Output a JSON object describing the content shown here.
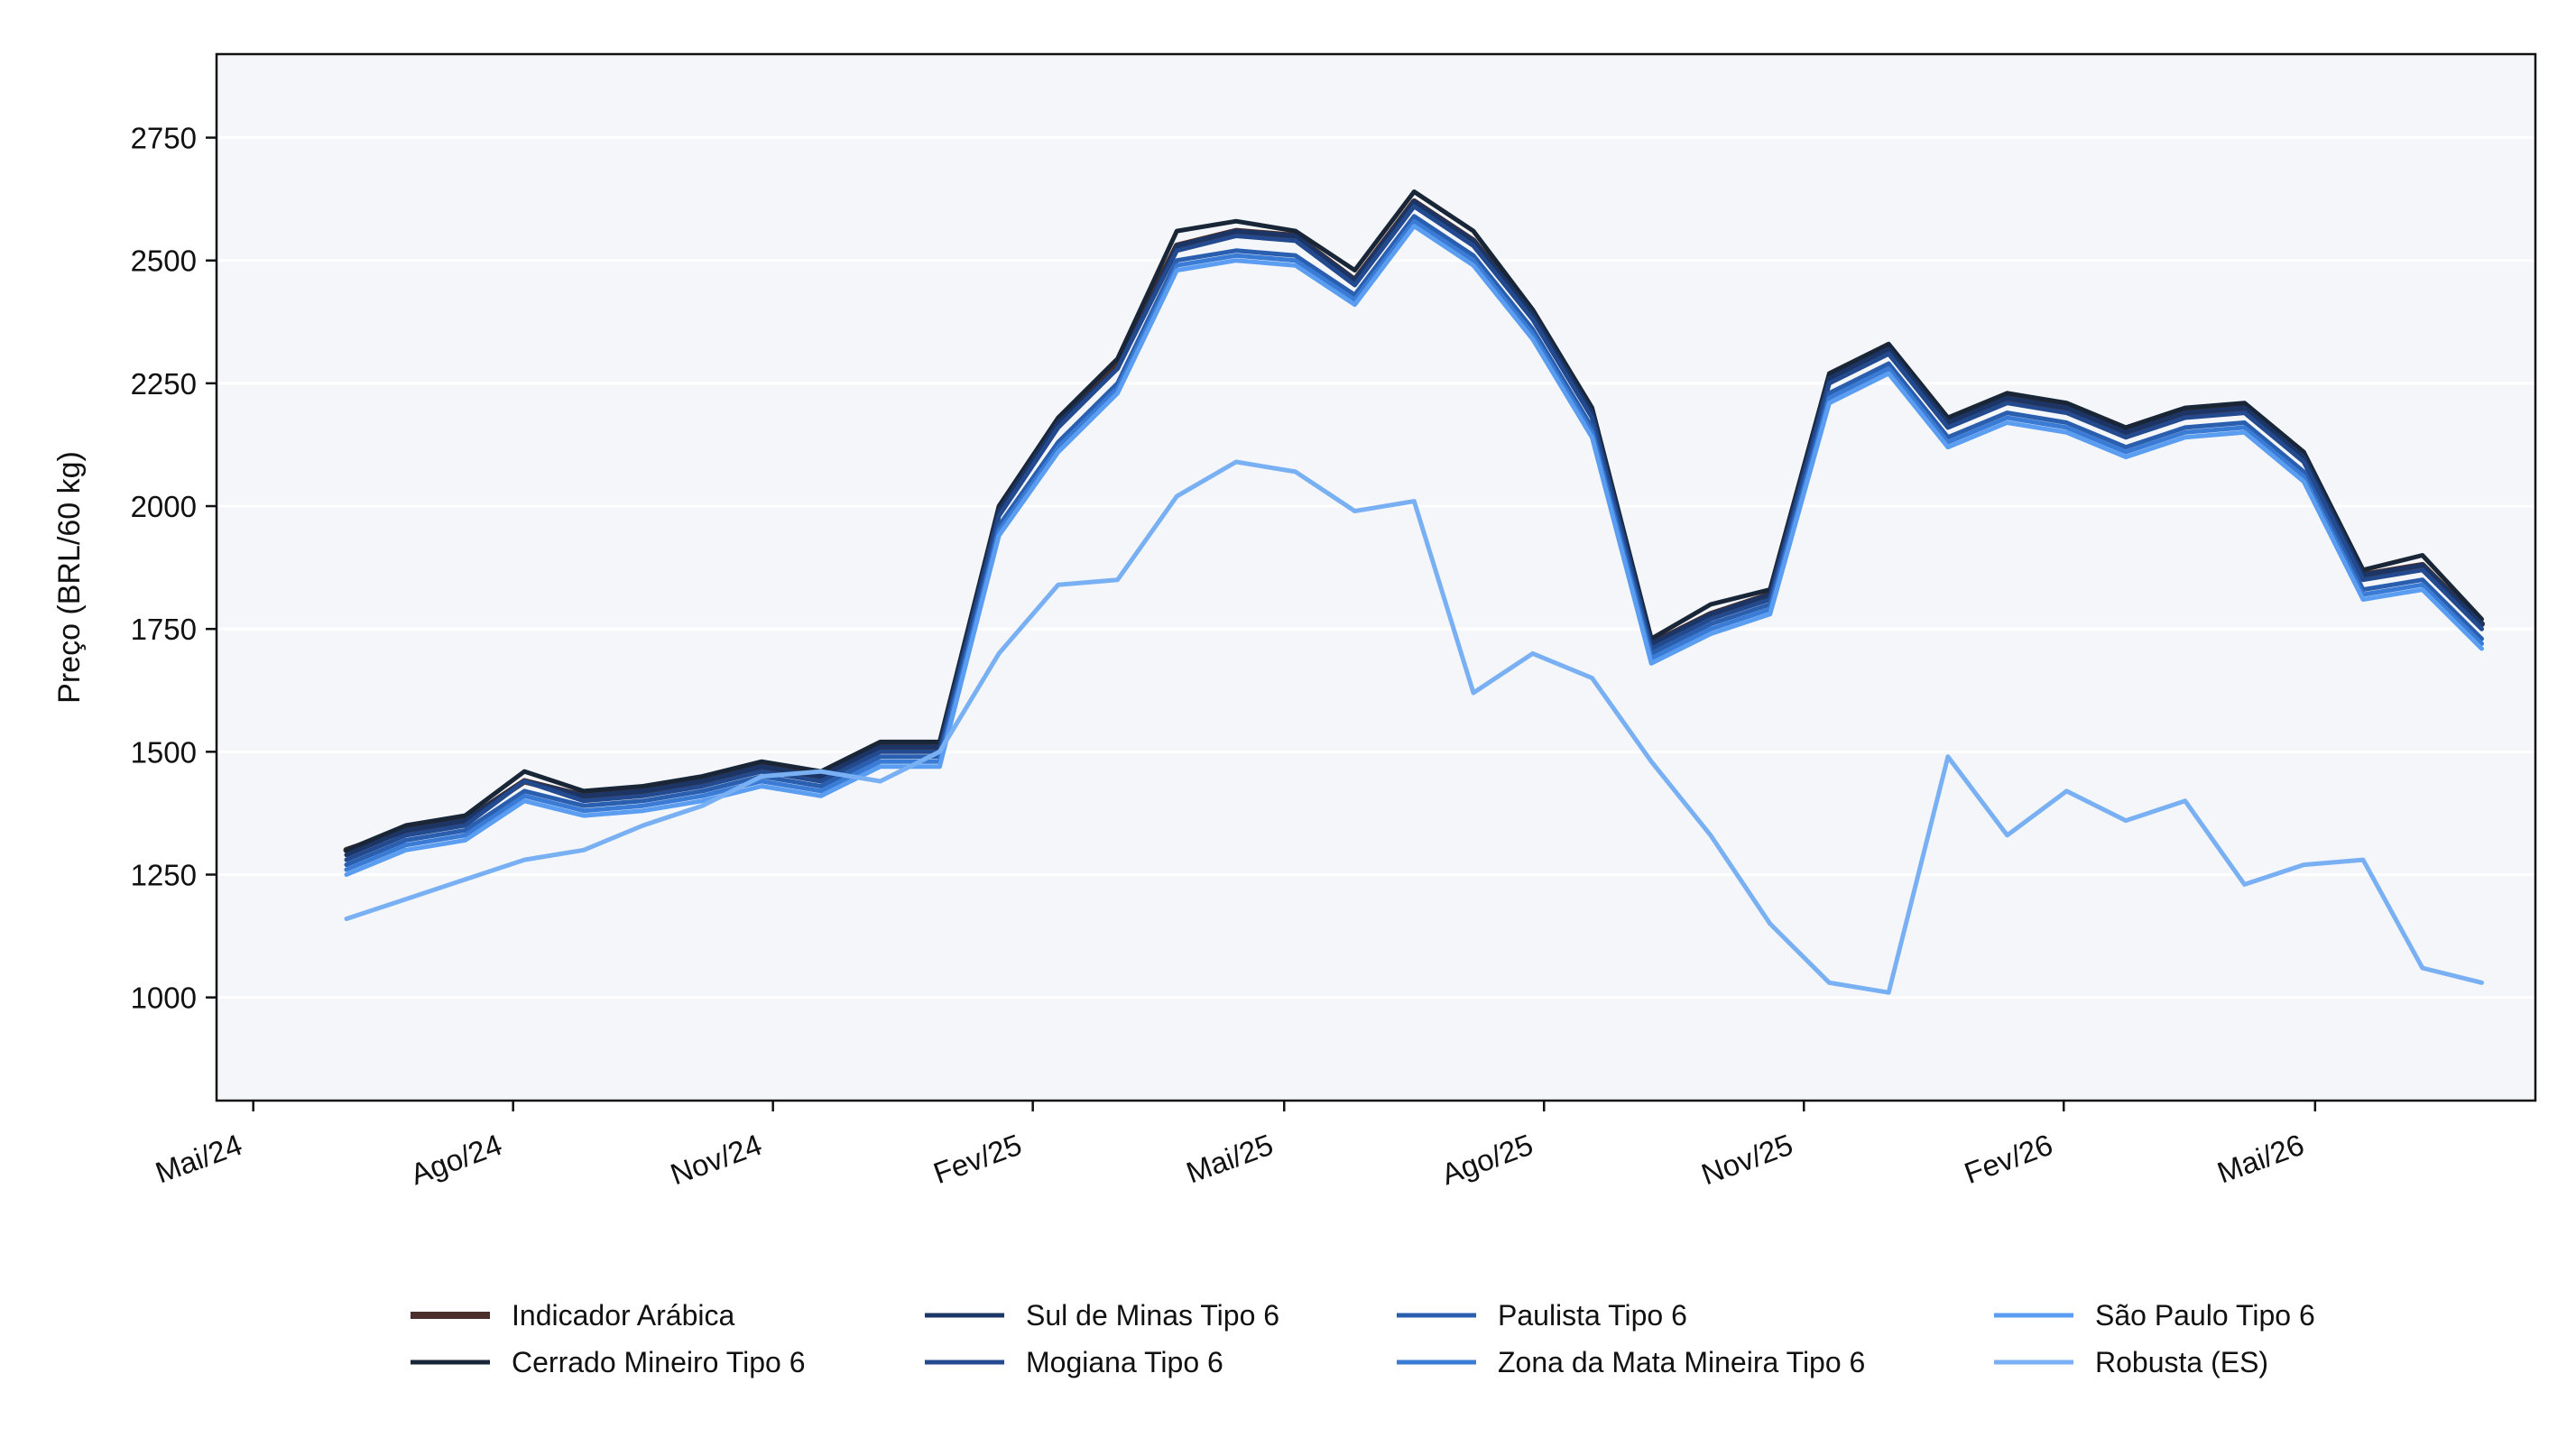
{
  "chart_data": {
    "type": "line",
    "ylabel": "Preço (BRL/60 kg)",
    "xlabel": "",
    "ylim": [
      790,
      2920
    ],
    "xlim": [
      "2024-04-18",
      "2026-07-18"
    ],
    "yticks": [
      1000,
      1250,
      1500,
      1750,
      2000,
      2250,
      2500,
      2750
    ],
    "xticks": [
      {
        "date": "2024-05-01",
        "label": "Mai/24"
      },
      {
        "date": "2024-08-01",
        "label": "Ago/24"
      },
      {
        "date": "2024-11-01",
        "label": "Nov/24"
      },
      {
        "date": "2025-02-01",
        "label": "Fev/25"
      },
      {
        "date": "2025-05-01",
        "label": "Mai/25"
      },
      {
        "date": "2025-08-01",
        "label": "Ago/25"
      },
      {
        "date": "2025-11-01",
        "label": "Nov/25"
      },
      {
        "date": "2026-02-01",
        "label": "Fev/26"
      },
      {
        "date": "2026-05-01",
        "label": "Mai/26"
      }
    ],
    "grid": "horizontal",
    "legend_position": "bottom",
    "background": "#f4f6fa",
    "x_dates": [
      "2024-06-03",
      "2024-06-24",
      "2024-07-15",
      "2024-08-05",
      "2024-08-26",
      "2024-09-16",
      "2024-10-07",
      "2024-10-28",
      "2024-11-18",
      "2024-12-09",
      "2024-12-30",
      "2025-01-20",
      "2025-02-10",
      "2025-03-03",
      "2025-03-24",
      "2025-04-14",
      "2025-05-05",
      "2025-05-26",
      "2025-06-16",
      "2025-07-07",
      "2025-07-28",
      "2025-08-18",
      "2025-09-08",
      "2025-09-29",
      "2025-10-20",
      "2025-11-10",
      "2025-12-01",
      "2025-12-22",
      "2026-01-12",
      "2026-02-02",
      "2026-02-23",
      "2026-03-16",
      "2026-04-06",
      "2026-04-27",
      "2026-05-18",
      "2026-06-08",
      "2026-06-29"
    ],
    "series": [
      {
        "name": "Indicador Arábica",
        "color": "#4a2f2a",
        "width": 7,
        "values": [
          1300,
          1340,
          1360,
          1440,
          1410,
          1420,
          1440,
          1470,
          1450,
          1510,
          1510,
          1990,
          2170,
          2290,
          2530,
          2560,
          2550,
          2460,
          2620,
          2540,
          2390,
          2190,
          1720,
          1780,
          1820,
          2260,
          2320,
          2170,
          2220,
          2200,
          2150,
          2190,
          2200,
          2100,
          1860,
          1880,
          1760
        ]
      },
      {
        "name": "Cerrado Mineiro Tipo 6",
        "color": "#182638",
        "width": 5,
        "values": [
          1300,
          1350,
          1370,
          1460,
          1420,
          1430,
          1450,
          1480,
          1460,
          1520,
          1520,
          2000,
          2180,
          2300,
          2560,
          2580,
          2560,
          2480,
          2640,
          2560,
          2400,
          2200,
          1730,
          1800,
          1830,
          2270,
          2330,
          2180,
          2230,
          2210,
          2160,
          2200,
          2210,
          2110,
          1870,
          1900,
          1770
        ]
      },
      {
        "name": "Sul de Minas Tipo 6",
        "color": "#1b3566",
        "width": 5,
        "values": [
          1290,
          1340,
          1360,
          1440,
          1410,
          1420,
          1440,
          1470,
          1450,
          1510,
          1510,
          1990,
          2170,
          2280,
          2530,
          2560,
          2550,
          2460,
          2620,
          2540,
          2390,
          2190,
          1720,
          1780,
          1820,
          2260,
          2320,
          2170,
          2220,
          2200,
          2150,
          2190,
          2200,
          2100,
          1860,
          1880,
          1760
        ]
      },
      {
        "name": "Mogiana Tipo 6",
        "color": "#234a8e",
        "width": 5,
        "values": [
          1280,
          1330,
          1350,
          1440,
          1400,
          1410,
          1430,
          1460,
          1440,
          1500,
          1500,
          1980,
          2160,
          2280,
          2520,
          2550,
          2540,
          2450,
          2610,
          2530,
          2380,
          2180,
          1710,
          1770,
          1810,
          2250,
          2310,
          2160,
          2210,
          2190,
          2140,
          2180,
          2190,
          2090,
          1850,
          1870,
          1750
        ]
      },
      {
        "name": "Paulista Tipo 6",
        "color": "#2a5fb0",
        "width": 5,
        "values": [
          1270,
          1320,
          1340,
          1420,
          1390,
          1400,
          1420,
          1450,
          1430,
          1490,
          1490,
          1960,
          2130,
          2250,
          2500,
          2520,
          2510,
          2430,
          2590,
          2510,
          2360,
          2160,
          1700,
          1760,
          1800,
          2230,
          2290,
          2140,
          2190,
          2170,
          2120,
          2160,
          2170,
          2070,
          1830,
          1850,
          1730
        ]
      },
      {
        "name": "Zona da Mata Mineira Tipo 6",
        "color": "#3a7bd5",
        "width": 5,
        "values": [
          1260,
          1310,
          1330,
          1410,
          1380,
          1390,
          1410,
          1440,
          1420,
          1480,
          1480,
          1950,
          2120,
          2240,
          2490,
          2510,
          2500,
          2420,
          2580,
          2500,
          2350,
          2150,
          1690,
          1750,
          1790,
          2220,
          2280,
          2130,
          2180,
          2160,
          2110,
          2150,
          2160,
          2060,
          1820,
          1840,
          1720
        ]
      },
      {
        "name": "São Paulo Tipo 6",
        "color": "#5b9df0",
        "width": 5,
        "values": [
          1250,
          1300,
          1320,
          1400,
          1370,
          1380,
          1400,
          1430,
          1410,
          1470,
          1470,
          1940,
          2110,
          2230,
          2480,
          2500,
          2490,
          2410,
          2570,
          2490,
          2340,
          2140,
          1680,
          1740,
          1780,
          2210,
          2270,
          2120,
          2170,
          2150,
          2100,
          2140,
          2150,
          2050,
          1810,
          1830,
          1710
        ]
      },
      {
        "name": "Robusta (ES)",
        "color": "#79b0f3",
        "width": 5,
        "values": [
          1160,
          1200,
          1240,
          1280,
          1300,
          1350,
          1390,
          1450,
          1460,
          1440,
          1500,
          1700,
          1840,
          1850,
          2020,
          2090,
          2070,
          1990,
          2010,
          1620,
          1700,
          1650,
          1480,
          1330,
          1150,
          1030,
          1010,
          1490,
          1330,
          1420,
          1360,
          1400,
          1230,
          1270,
          1280,
          1060,
          1030
        ]
      }
    ]
  }
}
